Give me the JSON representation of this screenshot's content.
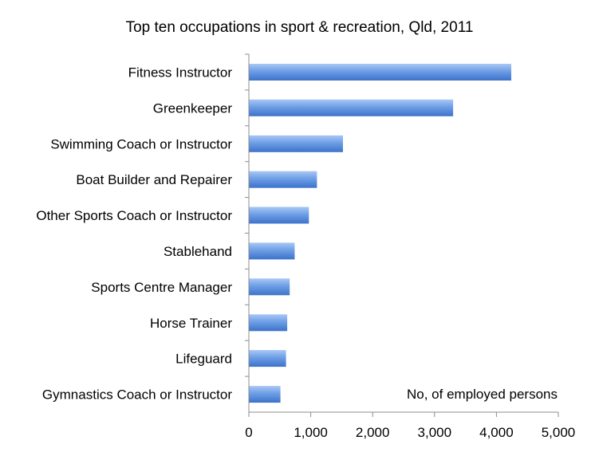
{
  "chart_data": {
    "type": "bar",
    "orientation": "horizontal",
    "title": "Top ten occupations in sport & recreation, Qld, 2011",
    "annotation": "No, of employed persons",
    "categories": [
      "Fitness Instructor",
      "Greenkeeper",
      "Swimming Coach or Instructor",
      "Boat Builder and Repairer",
      "Other Sports Coach or Instructor",
      "Stablehand",
      "Sports Centre Manager",
      "Horse Trainer",
      "Lifeguard",
      "Gymnastics Coach or Instructor"
    ],
    "values": [
      4240,
      3300,
      1520,
      1100,
      970,
      740,
      660,
      620,
      600,
      510
    ],
    "xlim": [
      0,
      5000
    ],
    "xticks": [
      "0",
      "1,000",
      "2,000",
      "3,000",
      "4,000",
      "5,000"
    ],
    "grid": false,
    "legend": "none",
    "bar_color": "#6d9ee6"
  }
}
